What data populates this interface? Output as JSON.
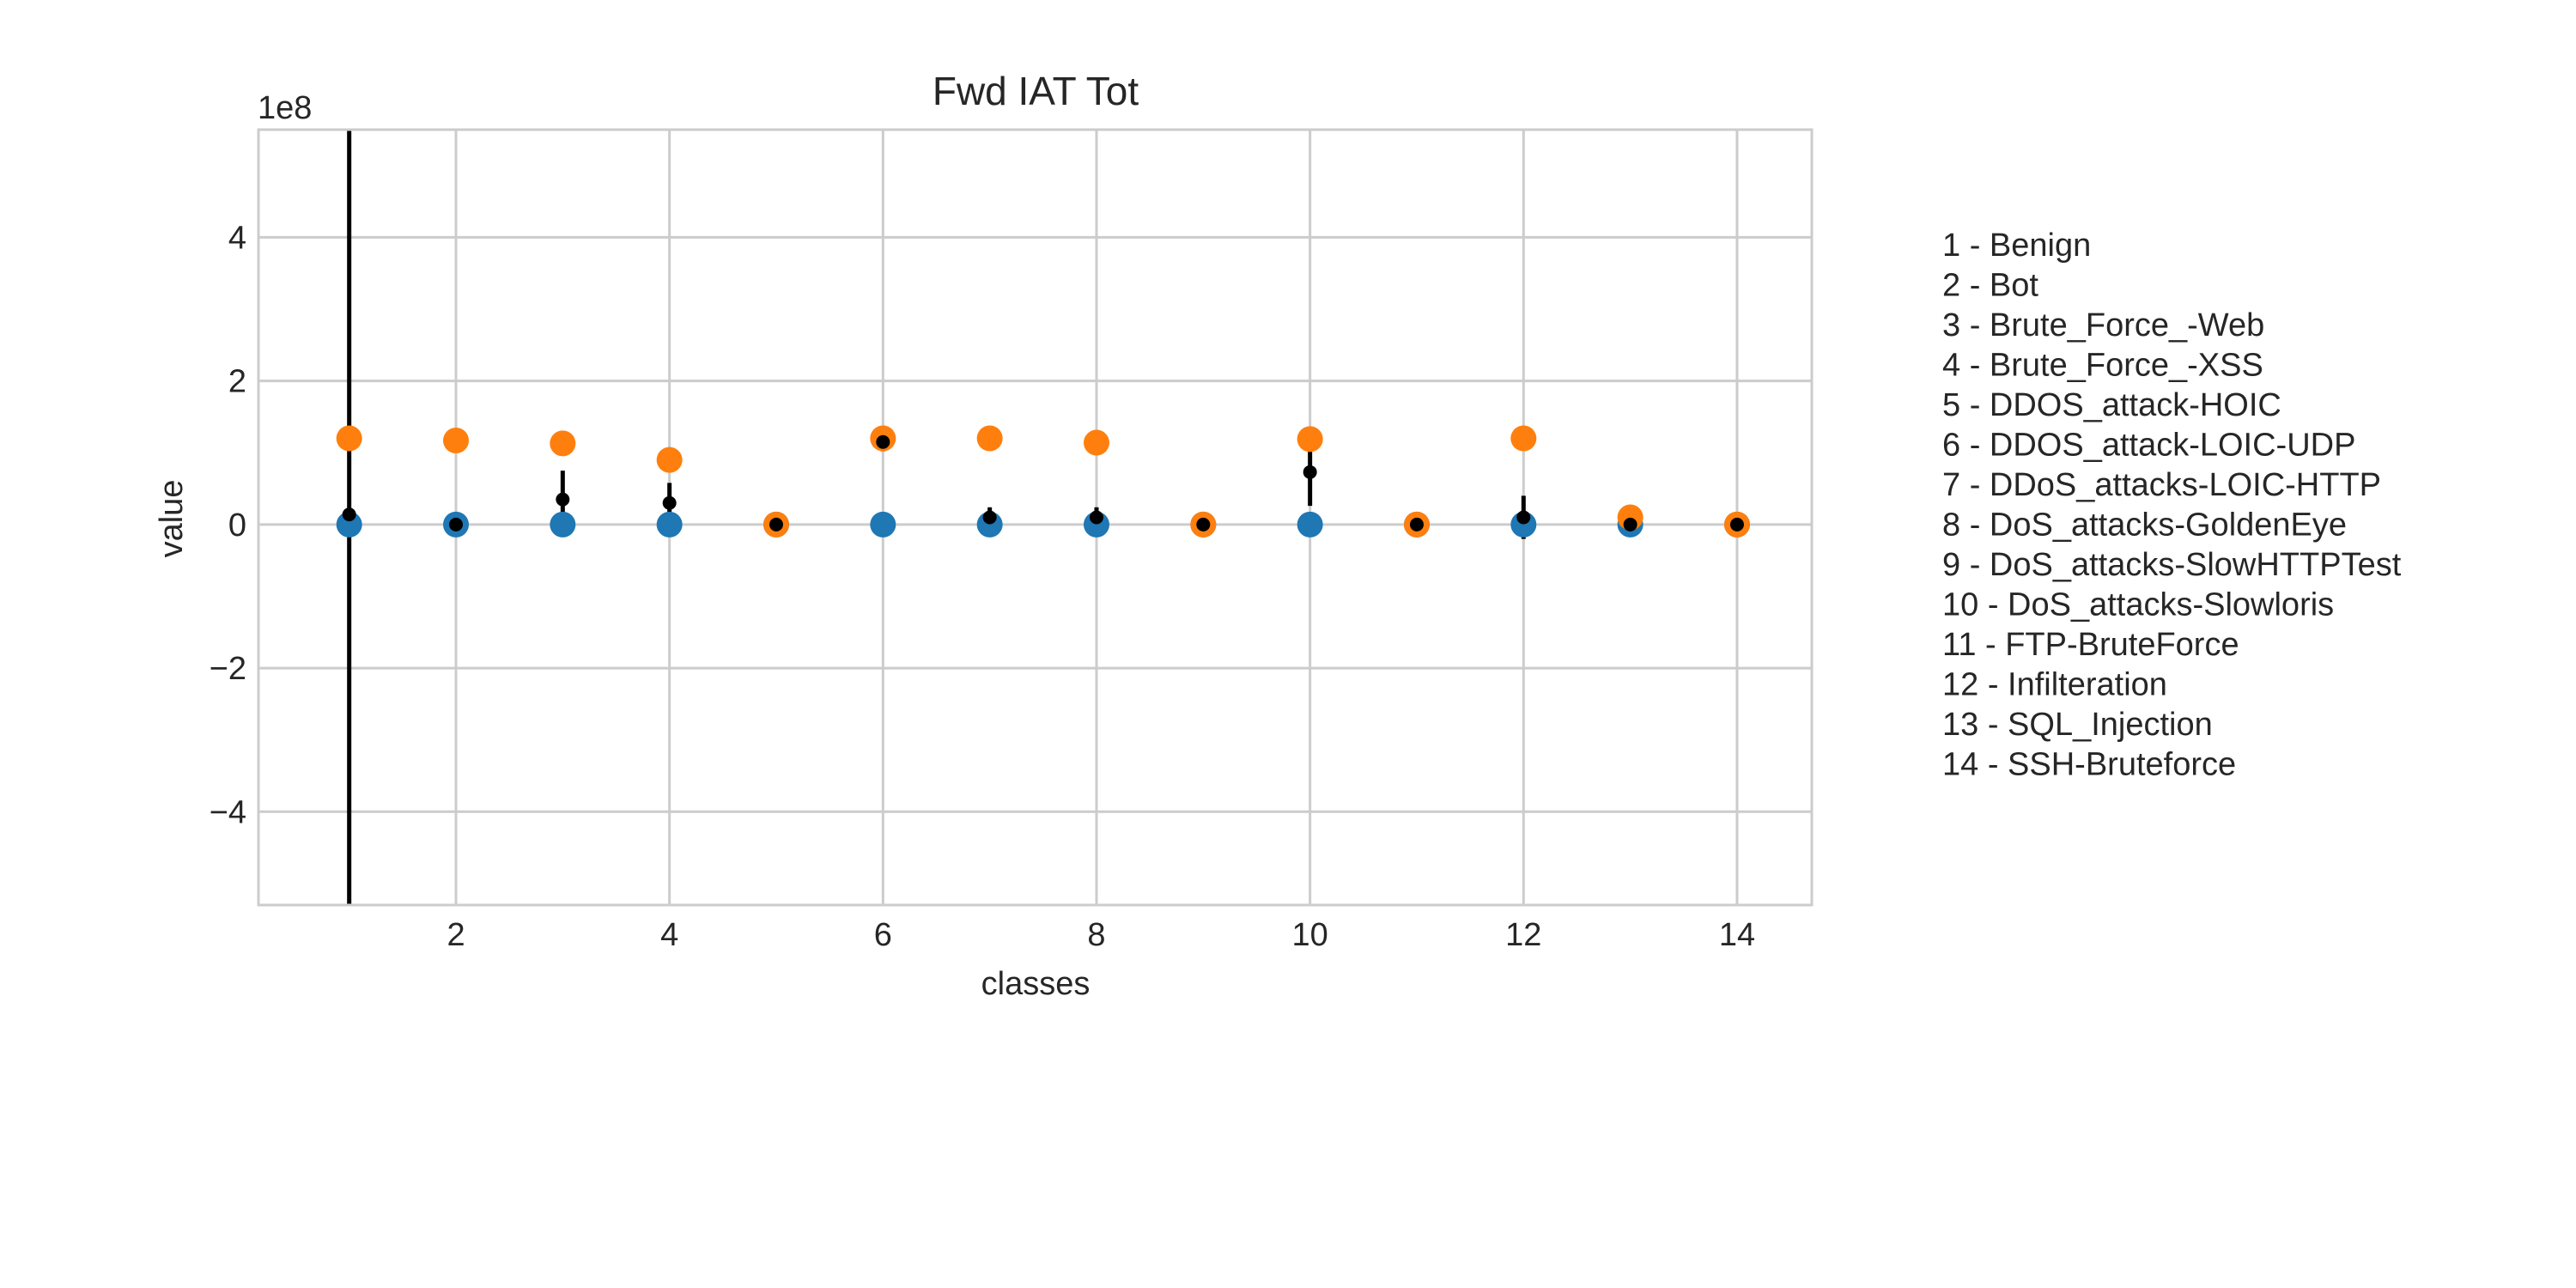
{
  "chart_data": {
    "type": "scatter",
    "title": "Fwd IAT Tot",
    "xlabel": "classes",
    "ylabel": "value",
    "y_scale_label": "1e8",
    "xlim": [
      0.15,
      14.7
    ],
    "ylim": [
      -5.3,
      5.5
    ],
    "x_ticks": [
      2,
      4,
      6,
      8,
      10,
      12,
      14
    ],
    "y_ticks": [
      -4,
      -2,
      0,
      2,
      4
    ],
    "y_tick_labels": [
      "−4",
      "−2",
      "0",
      "2",
      "4"
    ],
    "grid": true,
    "colors": {
      "min": "#1f77b4",
      "max": "#ff7f0e",
      "mean": "#000000",
      "grid": "#cccccc",
      "frame": "#cccccc"
    },
    "series": [
      {
        "key": "min",
        "x": [
          1,
          2,
          3,
          4,
          5,
          6,
          7,
          8,
          9,
          10,
          11,
          12,
          13,
          14
        ],
        "values": [
          0,
          0,
          0,
          0,
          0,
          0,
          0,
          0,
          0,
          0,
          0,
          0,
          0,
          0
        ]
      },
      {
        "key": "max",
        "x": [
          1,
          2,
          3,
          4,
          5,
          6,
          7,
          8,
          9,
          10,
          11,
          12,
          13,
          14
        ],
        "values": [
          1.2,
          1.17,
          1.13,
          0.9,
          0,
          1.2,
          1.2,
          1.14,
          0,
          1.19,
          0,
          1.2,
          0.1,
          0
        ]
      },
      {
        "key": "mean",
        "x": [
          1,
          2,
          3,
          4,
          5,
          6,
          7,
          8,
          9,
          10,
          11,
          12,
          13,
          14
        ],
        "values": [
          0.14,
          0,
          0.35,
          0.3,
          0,
          1.15,
          0.1,
          0.1,
          0,
          0.73,
          0,
          0.1,
          0,
          0
        ],
        "std": [
          6.0,
          0,
          0.4,
          0.28,
          0,
          0.13,
          0.14,
          0.14,
          0,
          0.47,
          0,
          0.3,
          0,
          0
        ]
      }
    ],
    "legend": [
      "1 - Benign",
      "2 - Bot",
      "3 - Brute_Force_-Web",
      "4 - Brute_Force_-XSS",
      "5 - DDOS_attack-HOIC",
      "6 - DDOS_attack-LOIC-UDP",
      "7 - DDoS_attacks-LOIC-HTTP",
      "8 - DoS_attacks-GoldenEye",
      "9 - DoS_attacks-SlowHTTPTest",
      "10 - DoS_attacks-Slowloris",
      "11 - FTP-BruteForce",
      "12 - Infilteration",
      "13 - SQL_Injection",
      "14 - SSH-Bruteforce"
    ]
  }
}
